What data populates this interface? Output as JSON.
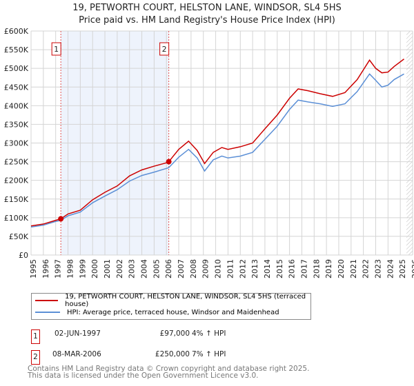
{
  "chart_data": {
    "type": "line",
    "title": "19, PETWORTH COURT, HELSTON LANE, WINDSOR, SL4 5HS",
    "subtitle": "Price paid vs. HM Land Registry's House Price Index (HPI)",
    "ylim": [
      0,
      600000
    ],
    "xlim": [
      1995,
      2026
    ],
    "y_ticks": [
      {
        "v": 0,
        "l": "£0"
      },
      {
        "v": 50000,
        "l": "£50K"
      },
      {
        "v": 100000,
        "l": "£100K"
      },
      {
        "v": 150000,
        "l": "£150K"
      },
      {
        "v": 200000,
        "l": "£200K"
      },
      {
        "v": 250000,
        "l": "£250K"
      },
      {
        "v": 300000,
        "l": "£300K"
      },
      {
        "v": 350000,
        "l": "£350K"
      },
      {
        "v": 400000,
        "l": "£400K"
      },
      {
        "v": 450000,
        "l": "£450K"
      },
      {
        "v": 500000,
        "l": "£500K"
      },
      {
        "v": 550000,
        "l": "£550K"
      },
      {
        "v": 600000,
        "l": "£600K"
      }
    ],
    "x_ticks": [
      "1995",
      "1996",
      "1997",
      "1998",
      "1999",
      "2000",
      "2001",
      "2002",
      "2003",
      "2004",
      "2005",
      "2006",
      "2007",
      "2008",
      "2009",
      "2010",
      "2011",
      "2012",
      "2013",
      "2014",
      "2015",
      "2016",
      "2017",
      "2018",
      "2019",
      "2020",
      "2021",
      "2022",
      "2023",
      "2024",
      "2025",
      "2026"
    ],
    "shaded_period": [
      1997.42,
      2006.19
    ],
    "forecast_from": 2025.5,
    "series": [
      {
        "name": "19, PETWORTH COURT, HELSTON LANE, WINDSOR, SL4 5HS (terraced house)",
        "color": "#cc0000",
        "x": [
          1995,
          1996,
          1997,
          1997.42,
          1998,
          1999,
          2000,
          2001,
          2002,
          2003,
          2004,
          2005,
          2006,
          2006.19,
          2007,
          2007.8,
          2008.5,
          2009.1,
          2009.8,
          2010.5,
          2011,
          2012,
          2013,
          2014,
          2015,
          2016,
          2016.7,
          2017.5,
          2018.5,
          2019.5,
          2020.5,
          2021.5,
          2022.5,
          2023,
          2023.5,
          2024,
          2024.5,
          2025.3
        ],
        "y": [
          78000,
          83000,
          93000,
          97000,
          110000,
          120000,
          148000,
          168000,
          185000,
          212000,
          228000,
          238000,
          247000,
          250000,
          283000,
          305000,
          280000,
          245000,
          275000,
          288000,
          283000,
          290000,
          300000,
          338000,
          375000,
          420000,
          445000,
          440000,
          432000,
          425000,
          435000,
          470000,
          522000,
          500000,
          488000,
          490000,
          505000,
          525000
        ]
      },
      {
        "name": "HPI: Average price, terraced house, Windsor and Maidenhead",
        "color": "#5b8fd6",
        "x": [
          1995,
          1996,
          1997,
          1997.42,
          1998,
          1999,
          2000,
          2001,
          2002,
          2003,
          2004,
          2005,
          2006,
          2006.19,
          2007,
          2007.8,
          2008.5,
          2009.1,
          2009.8,
          2010.5,
          2011,
          2012,
          2013,
          2014,
          2015,
          2016,
          2016.7,
          2017.5,
          2018.5,
          2019.5,
          2020.5,
          2021.5,
          2022.5,
          2023,
          2023.5,
          2024,
          2024.5,
          2025.3
        ],
        "y": [
          75000,
          80000,
          90000,
          93000,
          105000,
          115000,
          140000,
          158000,
          175000,
          198000,
          213000,
          222000,
          232000,
          234000,
          262000,
          283000,
          260000,
          225000,
          255000,
          265000,
          260000,
          265000,
          275000,
          310000,
          345000,
          390000,
          415000,
          410000,
          405000,
          398000,
          405000,
          438000,
          485000,
          468000,
          450000,
          455000,
          470000,
          485000
        ]
      }
    ],
    "sales": [
      {
        "label": "1",
        "x": 1997.42,
        "y": 97000,
        "date": "02-JUN-1997",
        "price": "£97,000",
        "hpi": "4% ↑ HPI"
      },
      {
        "label": "2",
        "x": 2006.19,
        "y": 250000,
        "date": "08-MAR-2006",
        "price": "£250,000",
        "hpi": "7% ↑ HPI"
      }
    ]
  },
  "footer": {
    "line1": "Contains HM Land Registry data © Crown copyright and database right 2025.",
    "line2": "This data is licensed under the Open Government Licence v3.0."
  }
}
